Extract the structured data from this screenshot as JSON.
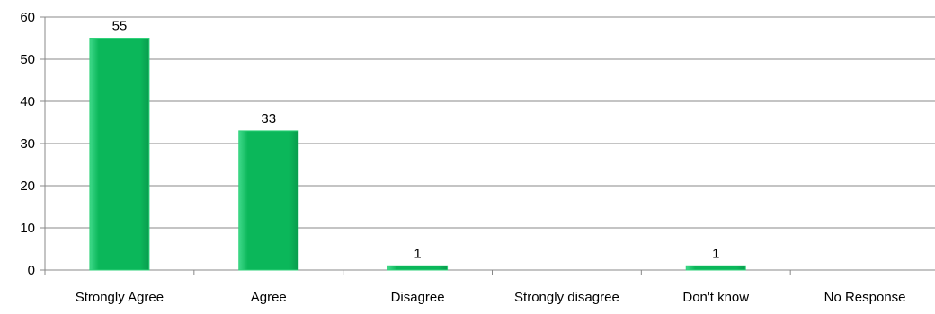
{
  "chart_data": {
    "type": "bar",
    "title": "",
    "xlabel": "",
    "ylabel": "",
    "categories": [
      "Strongly Agree",
      "Agree",
      "Disagree",
      "Strongly disagree",
      "Don't know",
      "No Response"
    ],
    "values": [
      55,
      33,
      1,
      0,
      1,
      0
    ],
    "data_labels": [
      "55",
      "33",
      "1",
      "",
      "1",
      ""
    ],
    "ylim": [
      0,
      60
    ],
    "yticks": [
      0,
      10,
      20,
      30,
      40,
      50,
      60
    ],
    "grid": true,
    "legend": "none",
    "colors": {
      "bar_fill": "#0bb75a",
      "bar_edge": "#2fd27a",
      "grid": "#888888",
      "axis": "#888888"
    }
  }
}
